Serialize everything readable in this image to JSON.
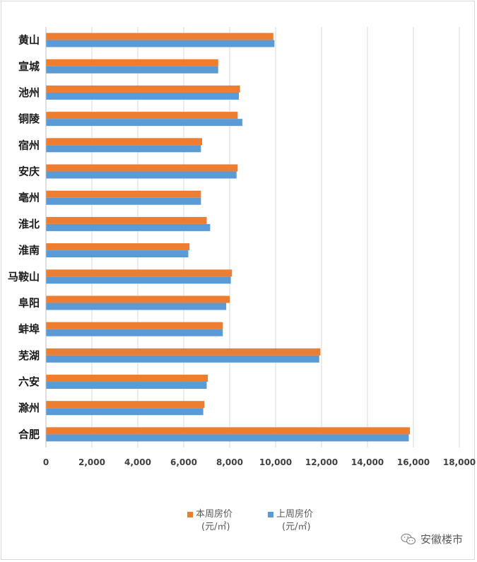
{
  "chart_data": {
    "type": "bar",
    "orientation": "horizontal",
    "categories": [
      "黄山",
      "宣城",
      "池州",
      "铜陵",
      "宿州",
      "安庆",
      "亳州",
      "淮北",
      "淮南",
      "马鞍山",
      "阜阳",
      "蚌埠",
      "芜湖",
      "六安",
      "滁州",
      "合肥"
    ],
    "series": [
      {
        "name": "本周房价",
        "unit": "(元/㎡)",
        "color": "#ED7D31",
        "values": [
          9900,
          7500,
          8450,
          8350,
          6800,
          8350,
          6750,
          7000,
          6250,
          8100,
          8000,
          7700,
          11950,
          7050,
          6900,
          15850
        ]
      },
      {
        "name": "上周房价",
        "unit": "(元/㎡)",
        "color": "#5B9BD5",
        "values": [
          9950,
          7500,
          8400,
          8550,
          6750,
          8300,
          6750,
          7150,
          6200,
          8050,
          7850,
          7700,
          11900,
          7000,
          6850,
          15800
        ]
      }
    ],
    "x_ticks": [
      "0",
      "2,000",
      "4,000",
      "6,000",
      "8,000",
      "10,000",
      "12,000",
      "14,000",
      "16,000",
      "18,000"
    ],
    "xlim": [
      0,
      18000
    ],
    "grid": true,
    "legend_position": "bottom"
  },
  "watermark": {
    "text": "安徽楼市",
    "icon": "wechat-icon"
  }
}
